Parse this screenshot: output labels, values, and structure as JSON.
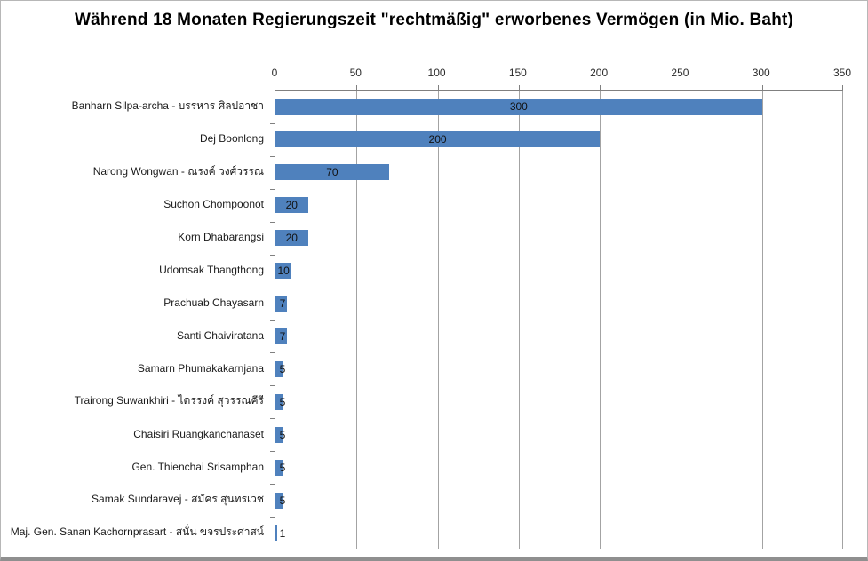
{
  "window": {
    "background": "#FFFFFF",
    "border_color": "#B7B7B7",
    "bottom_edge_color": "#8F8F8F"
  },
  "chart_data": {
    "type": "bar",
    "orientation": "horizontal",
    "title": "Während 18 Monaten Regierungszeit \"rechtmäßig\" erworbenes Vermögen (in Mio. Baht)",
    "categories": [
      "Banharn Silpa-archa - บรรหาร ศิลปอาชา",
      "Dej Boonlong",
      "Narong Wongwan - ณรงค์ วงศ์วรรณ",
      "Suchon Chompoonot",
      "Korn Dhabarangsi",
      "Udomsak Thangthong",
      "Prachuab Chayasarn",
      "Santi Chaiviratana",
      "Samarn Phumakakarnjana",
      "Trairong Suwankhiri - ไตรรงค์ สุวรรณคีรี",
      "Chaisiri Ruangkanchanaset",
      "Gen. Thienchai Srisamphan",
      "Samak Sundaravej - สมัคร สุนทรเวช",
      "Maj. Gen. Sanan Kachornprasart - สนั่น ขจรประศาสน์"
    ],
    "values": [
      300,
      200,
      70,
      20,
      20,
      10,
      7,
      7,
      5,
      5,
      5,
      5,
      5,
      1
    ],
    "data_labels": [
      "300",
      "200",
      "70",
      "20",
      "20",
      "10",
      "7",
      "7",
      "5",
      "5",
      "5",
      "5",
      "5",
      "1"
    ],
    "xlabel": "",
    "ylabel": "",
    "xlim": [
      0,
      350
    ],
    "xticks": [
      0,
      50,
      100,
      150,
      200,
      250,
      300,
      350
    ],
    "grid": "vertical",
    "legend": "none",
    "colors": {
      "bar": "#4F81BD",
      "gridline": "#A3A3A3",
      "axis": "#808080",
      "title_text": "#000000",
      "tick_label_text": "#2B2B2B",
      "data_label_text": "#111111"
    }
  }
}
